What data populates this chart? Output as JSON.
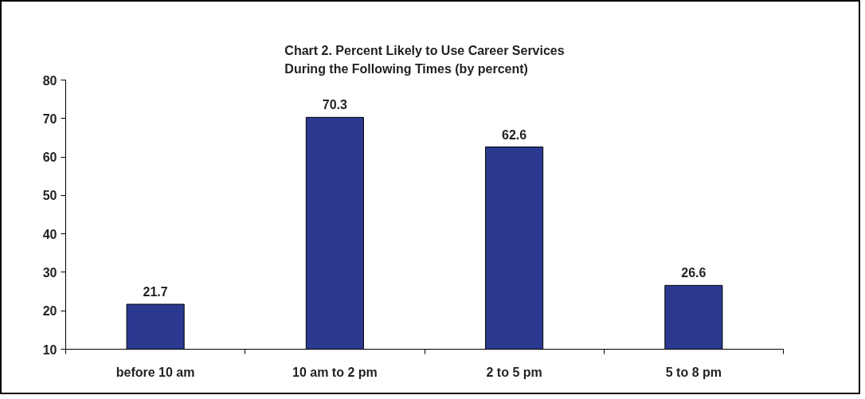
{
  "chart_data": {
    "type": "bar",
    "title": "Chart 2. Percent Likely to Use Career Services\nDuring the Following Times (by percent)",
    "categories": [
      "before 10 am",
      "10 am to 2 pm",
      "2 to 5 pm",
      "5 to 8 pm"
    ],
    "values": [
      21.7,
      70.3,
      62.6,
      26.6
    ],
    "color": "#2b3990",
    "ylim": [
      10,
      80
    ],
    "yticks": [
      10,
      20,
      30,
      40,
      50,
      60,
      70,
      80
    ],
    "grid": false,
    "data_labels": true
  }
}
